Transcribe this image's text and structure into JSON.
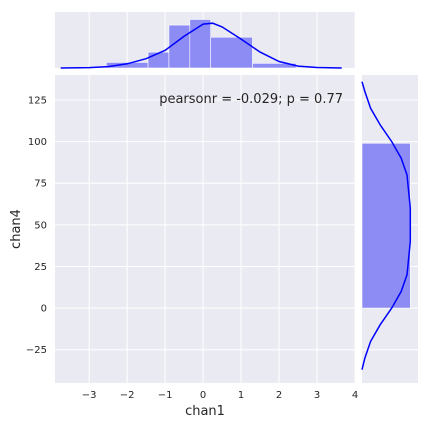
{
  "chart_data": {
    "type": "jointplot",
    "xlabel": "chan1",
    "ylabel": "chan4",
    "annotation": "pearsonr = -0.029; p = 0.77",
    "annotation_position": "top-right",
    "grid": true,
    "colors": {
      "hist": "#8d8cf5",
      "kde": "#0000ff",
      "panel": "#eaeaf2"
    },
    "main": {
      "xlim": [
        -3.9,
        4.0
      ],
      "ylim": [
        -45,
        140
      ],
      "xticks": [
        -3,
        -2,
        -1,
        0,
        1,
        2,
        3,
        4
      ],
      "yticks": [
        -25,
        0,
        25,
        50,
        75,
        100,
        125
      ],
      "points": []
    },
    "marginal_x": {
      "bins": [
        {
          "x0": -2.55,
          "x1": -1.45,
          "density": 0.06
        },
        {
          "x0": -1.45,
          "x1": -0.9,
          "density": 0.17
        },
        {
          "x0": -0.9,
          "x1": -0.35,
          "density": 0.46
        },
        {
          "x0": -0.35,
          "x1": 0.2,
          "density": 0.52
        },
        {
          "x0": 0.2,
          "x1": 1.3,
          "density": 0.33
        },
        {
          "x0": 1.3,
          "x1": 2.45,
          "density": 0.05
        }
      ],
      "kde_x": [
        -3.75,
        -3.0,
        -2.5,
        -2.0,
        -1.5,
        -1.0,
        -0.5,
        0.0,
        0.25,
        0.5,
        1.0,
        1.5,
        2.0,
        2.5,
        3.0,
        3.65
      ],
      "kde_y": [
        0.0,
        0.004,
        0.015,
        0.045,
        0.1,
        0.19,
        0.34,
        0.47,
        0.48,
        0.44,
        0.31,
        0.17,
        0.07,
        0.02,
        0.005,
        0.0
      ],
      "ylim": [
        0,
        0.6
      ]
    },
    "marginal_y": {
      "bins": [
        {
          "y0": 0,
          "y1": 99,
          "density": 0.0101
        }
      ],
      "kde_y": [
        -37,
        -30,
        -20,
        -10,
        0,
        10,
        20,
        40,
        60,
        80,
        90,
        100,
        110,
        120,
        130,
        136
      ],
      "kde_x": [
        0.0,
        0.0006,
        0.0018,
        0.0038,
        0.0062,
        0.0082,
        0.0094,
        0.0101,
        0.0101,
        0.0094,
        0.0082,
        0.0062,
        0.0038,
        0.0018,
        0.0006,
        0.0
      ],
      "xlim": [
        0,
        0.0117
      ]
    }
  }
}
